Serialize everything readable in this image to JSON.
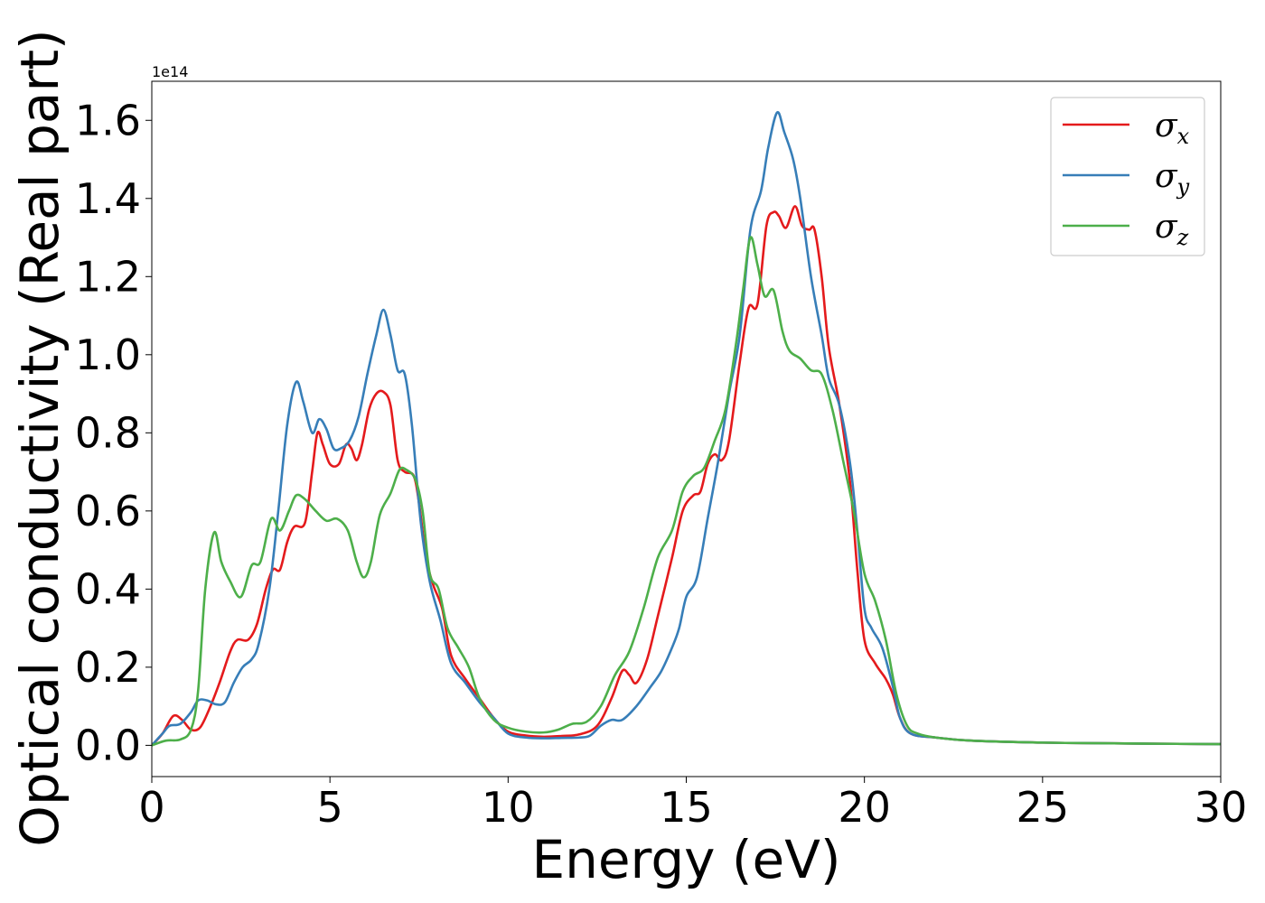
{
  "chart_data": {
    "type": "line",
    "title": "",
    "xlabel": "Energy (eV)",
    "ylabel": "Optical conductivity (Real part)",
    "offset_text": "1e14",
    "xlim": [
      0,
      30
    ],
    "ylim": [
      -0.08,
      1.7
    ],
    "x_ticks": [
      0,
      5,
      10,
      15,
      20,
      25,
      30
    ],
    "x_tick_labels": [
      "0",
      "5",
      "10",
      "15",
      "20",
      "25",
      "30"
    ],
    "y_ticks": [
      0.0,
      0.2,
      0.4,
      0.6,
      0.8,
      1.0,
      1.2,
      1.4,
      1.6
    ],
    "y_tick_labels": [
      "0.0",
      "0.2",
      "0.4",
      "0.6",
      "0.8",
      "1.0",
      "1.2",
      "1.4",
      "1.6"
    ],
    "grid": false,
    "legend_position": "upper-right",
    "series": [
      {
        "name": "σx",
        "symbol": "σ",
        "subscript": "x",
        "color": "#e41a1c",
        "points": [
          [
            0,
            0
          ],
          [
            0.3,
            0.03
          ],
          [
            0.6,
            0.075
          ],
          [
            0.85,
            0.065
          ],
          [
            1.1,
            0.04
          ],
          [
            1.35,
            0.045
          ],
          [
            1.6,
            0.09
          ],
          [
            1.9,
            0.16
          ],
          [
            2.2,
            0.24
          ],
          [
            2.4,
            0.27
          ],
          [
            2.7,
            0.27
          ],
          [
            2.95,
            0.31
          ],
          [
            3.2,
            0.4
          ],
          [
            3.4,
            0.45
          ],
          [
            3.6,
            0.45
          ],
          [
            3.8,
            0.52
          ],
          [
            4.0,
            0.56
          ],
          [
            4.3,
            0.57
          ],
          [
            4.5,
            0.7
          ],
          [
            4.65,
            0.8
          ],
          [
            4.8,
            0.77
          ],
          [
            5.0,
            0.72
          ],
          [
            5.25,
            0.72
          ],
          [
            5.45,
            0.77
          ],
          [
            5.6,
            0.76
          ],
          [
            5.75,
            0.73
          ],
          [
            5.9,
            0.77
          ],
          [
            6.1,
            0.86
          ],
          [
            6.3,
            0.9
          ],
          [
            6.5,
            0.905
          ],
          [
            6.7,
            0.87
          ],
          [
            6.9,
            0.73
          ],
          [
            7.1,
            0.7
          ],
          [
            7.35,
            0.69
          ],
          [
            7.5,
            0.62
          ],
          [
            7.7,
            0.48
          ],
          [
            7.9,
            0.41
          ],
          [
            8.15,
            0.35
          ],
          [
            8.4,
            0.23
          ],
          [
            8.8,
            0.17
          ],
          [
            9.2,
            0.12
          ],
          [
            9.6,
            0.07
          ],
          [
            10.0,
            0.035
          ],
          [
            10.5,
            0.025
          ],
          [
            11.0,
            0.022
          ],
          [
            11.5,
            0.024
          ],
          [
            12.0,
            0.028
          ],
          [
            12.5,
            0.05
          ],
          [
            12.9,
            0.12
          ],
          [
            13.2,
            0.19
          ],
          [
            13.4,
            0.18
          ],
          [
            13.6,
            0.16
          ],
          [
            13.9,
            0.22
          ],
          [
            14.2,
            0.33
          ],
          [
            14.6,
            0.48
          ],
          [
            14.9,
            0.6
          ],
          [
            15.2,
            0.64
          ],
          [
            15.4,
            0.65
          ],
          [
            15.6,
            0.72
          ],
          [
            15.8,
            0.745
          ],
          [
            16.0,
            0.73
          ],
          [
            16.2,
            0.78
          ],
          [
            16.5,
            0.98
          ],
          [
            16.75,
            1.12
          ],
          [
            17.0,
            1.13
          ],
          [
            17.25,
            1.33
          ],
          [
            17.45,
            1.365
          ],
          [
            17.6,
            1.355
          ],
          [
            17.8,
            1.325
          ],
          [
            18.05,
            1.38
          ],
          [
            18.25,
            1.33
          ],
          [
            18.45,
            1.32
          ],
          [
            18.6,
            1.32
          ],
          [
            18.8,
            1.2
          ],
          [
            19.0,
            1.02
          ],
          [
            19.3,
            0.87
          ],
          [
            19.6,
            0.67
          ],
          [
            19.8,
            0.45
          ],
          [
            20.0,
            0.27
          ],
          [
            20.3,
            0.21
          ],
          [
            20.6,
            0.17
          ],
          [
            20.8,
            0.13
          ],
          [
            21.0,
            0.07
          ],
          [
            21.3,
            0.03
          ],
          [
            22,
            0.02
          ],
          [
            23,
            0.012
          ],
          [
            25,
            0.007
          ],
          [
            27,
            0.005
          ],
          [
            30,
            0.003
          ]
        ]
      },
      {
        "name": "σy",
        "symbol": "σ",
        "subscript": "y",
        "color": "#377eb8",
        "points": [
          [
            0,
            0
          ],
          [
            0.3,
            0.03
          ],
          [
            0.5,
            0.05
          ],
          [
            0.8,
            0.055
          ],
          [
            1.1,
            0.085
          ],
          [
            1.3,
            0.115
          ],
          [
            1.55,
            0.115
          ],
          [
            1.8,
            0.105
          ],
          [
            2.05,
            0.11
          ],
          [
            2.3,
            0.16
          ],
          [
            2.55,
            0.2
          ],
          [
            2.8,
            0.22
          ],
          [
            3.0,
            0.26
          ],
          [
            3.3,
            0.4
          ],
          [
            3.55,
            0.6
          ],
          [
            3.8,
            0.82
          ],
          [
            4.05,
            0.93
          ],
          [
            4.25,
            0.88
          ],
          [
            4.5,
            0.8
          ],
          [
            4.7,
            0.835
          ],
          [
            4.9,
            0.81
          ],
          [
            5.1,
            0.76
          ],
          [
            5.3,
            0.76
          ],
          [
            5.55,
            0.78
          ],
          [
            5.8,
            0.84
          ],
          [
            6.05,
            0.95
          ],
          [
            6.3,
            1.05
          ],
          [
            6.5,
            1.115
          ],
          [
            6.7,
            1.05
          ],
          [
            6.9,
            0.96
          ],
          [
            7.1,
            0.95
          ],
          [
            7.3,
            0.82
          ],
          [
            7.55,
            0.57
          ],
          [
            7.8,
            0.42
          ],
          [
            8.1,
            0.32
          ],
          [
            8.4,
            0.21
          ],
          [
            8.8,
            0.16
          ],
          [
            9.2,
            0.11
          ],
          [
            9.6,
            0.07
          ],
          [
            10.0,
            0.03
          ],
          [
            10.5,
            0.02
          ],
          [
            11.0,
            0.018
          ],
          [
            11.5,
            0.019
          ],
          [
            12.0,
            0.02
          ],
          [
            12.3,
            0.025
          ],
          [
            12.6,
            0.05
          ],
          [
            12.9,
            0.065
          ],
          [
            13.2,
            0.065
          ],
          [
            13.6,
            0.1
          ],
          [
            14.0,
            0.15
          ],
          [
            14.3,
            0.19
          ],
          [
            14.6,
            0.25
          ],
          [
            14.8,
            0.3
          ],
          [
            15.0,
            0.38
          ],
          [
            15.3,
            0.43
          ],
          [
            15.6,
            0.58
          ],
          [
            15.9,
            0.73
          ],
          [
            16.2,
            0.9
          ],
          [
            16.5,
            1.05
          ],
          [
            16.8,
            1.32
          ],
          [
            17.1,
            1.42
          ],
          [
            17.3,
            1.53
          ],
          [
            17.55,
            1.62
          ],
          [
            17.75,
            1.57
          ],
          [
            18.0,
            1.5
          ],
          [
            18.2,
            1.4
          ],
          [
            18.5,
            1.2
          ],
          [
            18.8,
            1.05
          ],
          [
            19.0,
            0.94
          ],
          [
            19.3,
            0.87
          ],
          [
            19.6,
            0.72
          ],
          [
            19.8,
            0.55
          ],
          [
            20.0,
            0.35
          ],
          [
            20.2,
            0.3
          ],
          [
            20.5,
            0.25
          ],
          [
            20.8,
            0.15
          ],
          [
            21.0,
            0.07
          ],
          [
            21.3,
            0.03
          ],
          [
            22,
            0.02
          ],
          [
            23,
            0.012
          ],
          [
            25,
            0.007
          ],
          [
            27,
            0.005
          ],
          [
            30,
            0.003
          ]
        ]
      },
      {
        "name": "σz",
        "symbol": "σ",
        "subscript": "z",
        "color": "#4daf4a",
        "points": [
          [
            0,
            0
          ],
          [
            0.4,
            0.012
          ],
          [
            0.8,
            0.015
          ],
          [
            1.1,
            0.04
          ],
          [
            1.3,
            0.14
          ],
          [
            1.5,
            0.4
          ],
          [
            1.75,
            0.545
          ],
          [
            1.95,
            0.47
          ],
          [
            2.2,
            0.42
          ],
          [
            2.5,
            0.38
          ],
          [
            2.8,
            0.46
          ],
          [
            3.05,
            0.47
          ],
          [
            3.35,
            0.58
          ],
          [
            3.6,
            0.55
          ],
          [
            3.85,
            0.6
          ],
          [
            4.05,
            0.64
          ],
          [
            4.3,
            0.63
          ],
          [
            4.6,
            0.6
          ],
          [
            4.9,
            0.575
          ],
          [
            5.2,
            0.58
          ],
          [
            5.5,
            0.55
          ],
          [
            5.75,
            0.47
          ],
          [
            5.95,
            0.43
          ],
          [
            6.15,
            0.47
          ],
          [
            6.4,
            0.59
          ],
          [
            6.7,
            0.645
          ],
          [
            6.95,
            0.705
          ],
          [
            7.15,
            0.705
          ],
          [
            7.4,
            0.68
          ],
          [
            7.6,
            0.6
          ],
          [
            7.8,
            0.44
          ],
          [
            8.05,
            0.4
          ],
          [
            8.3,
            0.3
          ],
          [
            8.6,
            0.25
          ],
          [
            8.9,
            0.2
          ],
          [
            9.2,
            0.12
          ],
          [
            9.6,
            0.065
          ],
          [
            10.0,
            0.045
          ],
          [
            10.5,
            0.035
          ],
          [
            11.0,
            0.033
          ],
          [
            11.4,
            0.04
          ],
          [
            11.8,
            0.055
          ],
          [
            12.2,
            0.06
          ],
          [
            12.6,
            0.1
          ],
          [
            13.0,
            0.18
          ],
          [
            13.4,
            0.24
          ],
          [
            13.8,
            0.35
          ],
          [
            14.2,
            0.48
          ],
          [
            14.6,
            0.55
          ],
          [
            14.9,
            0.65
          ],
          [
            15.2,
            0.69
          ],
          [
            15.5,
            0.71
          ],
          [
            15.8,
            0.78
          ],
          [
            16.1,
            0.86
          ],
          [
            16.4,
            1.03
          ],
          [
            16.6,
            1.17
          ],
          [
            16.8,
            1.3
          ],
          [
            17.0,
            1.23
          ],
          [
            17.2,
            1.15
          ],
          [
            17.45,
            1.165
          ],
          [
            17.7,
            1.06
          ],
          [
            17.9,
            1.01
          ],
          [
            18.2,
            0.99
          ],
          [
            18.5,
            0.96
          ],
          [
            18.8,
            0.95
          ],
          [
            19.1,
            0.86
          ],
          [
            19.4,
            0.73
          ],
          [
            19.7,
            0.6
          ],
          [
            20.0,
            0.44
          ],
          [
            20.3,
            0.37
          ],
          [
            20.6,
            0.27
          ],
          [
            20.9,
            0.13
          ],
          [
            21.2,
            0.05
          ],
          [
            21.5,
            0.03
          ],
          [
            22,
            0.02
          ],
          [
            23,
            0.012
          ],
          [
            25,
            0.007
          ],
          [
            27,
            0.005
          ],
          [
            30,
            0.003
          ]
        ]
      }
    ]
  }
}
